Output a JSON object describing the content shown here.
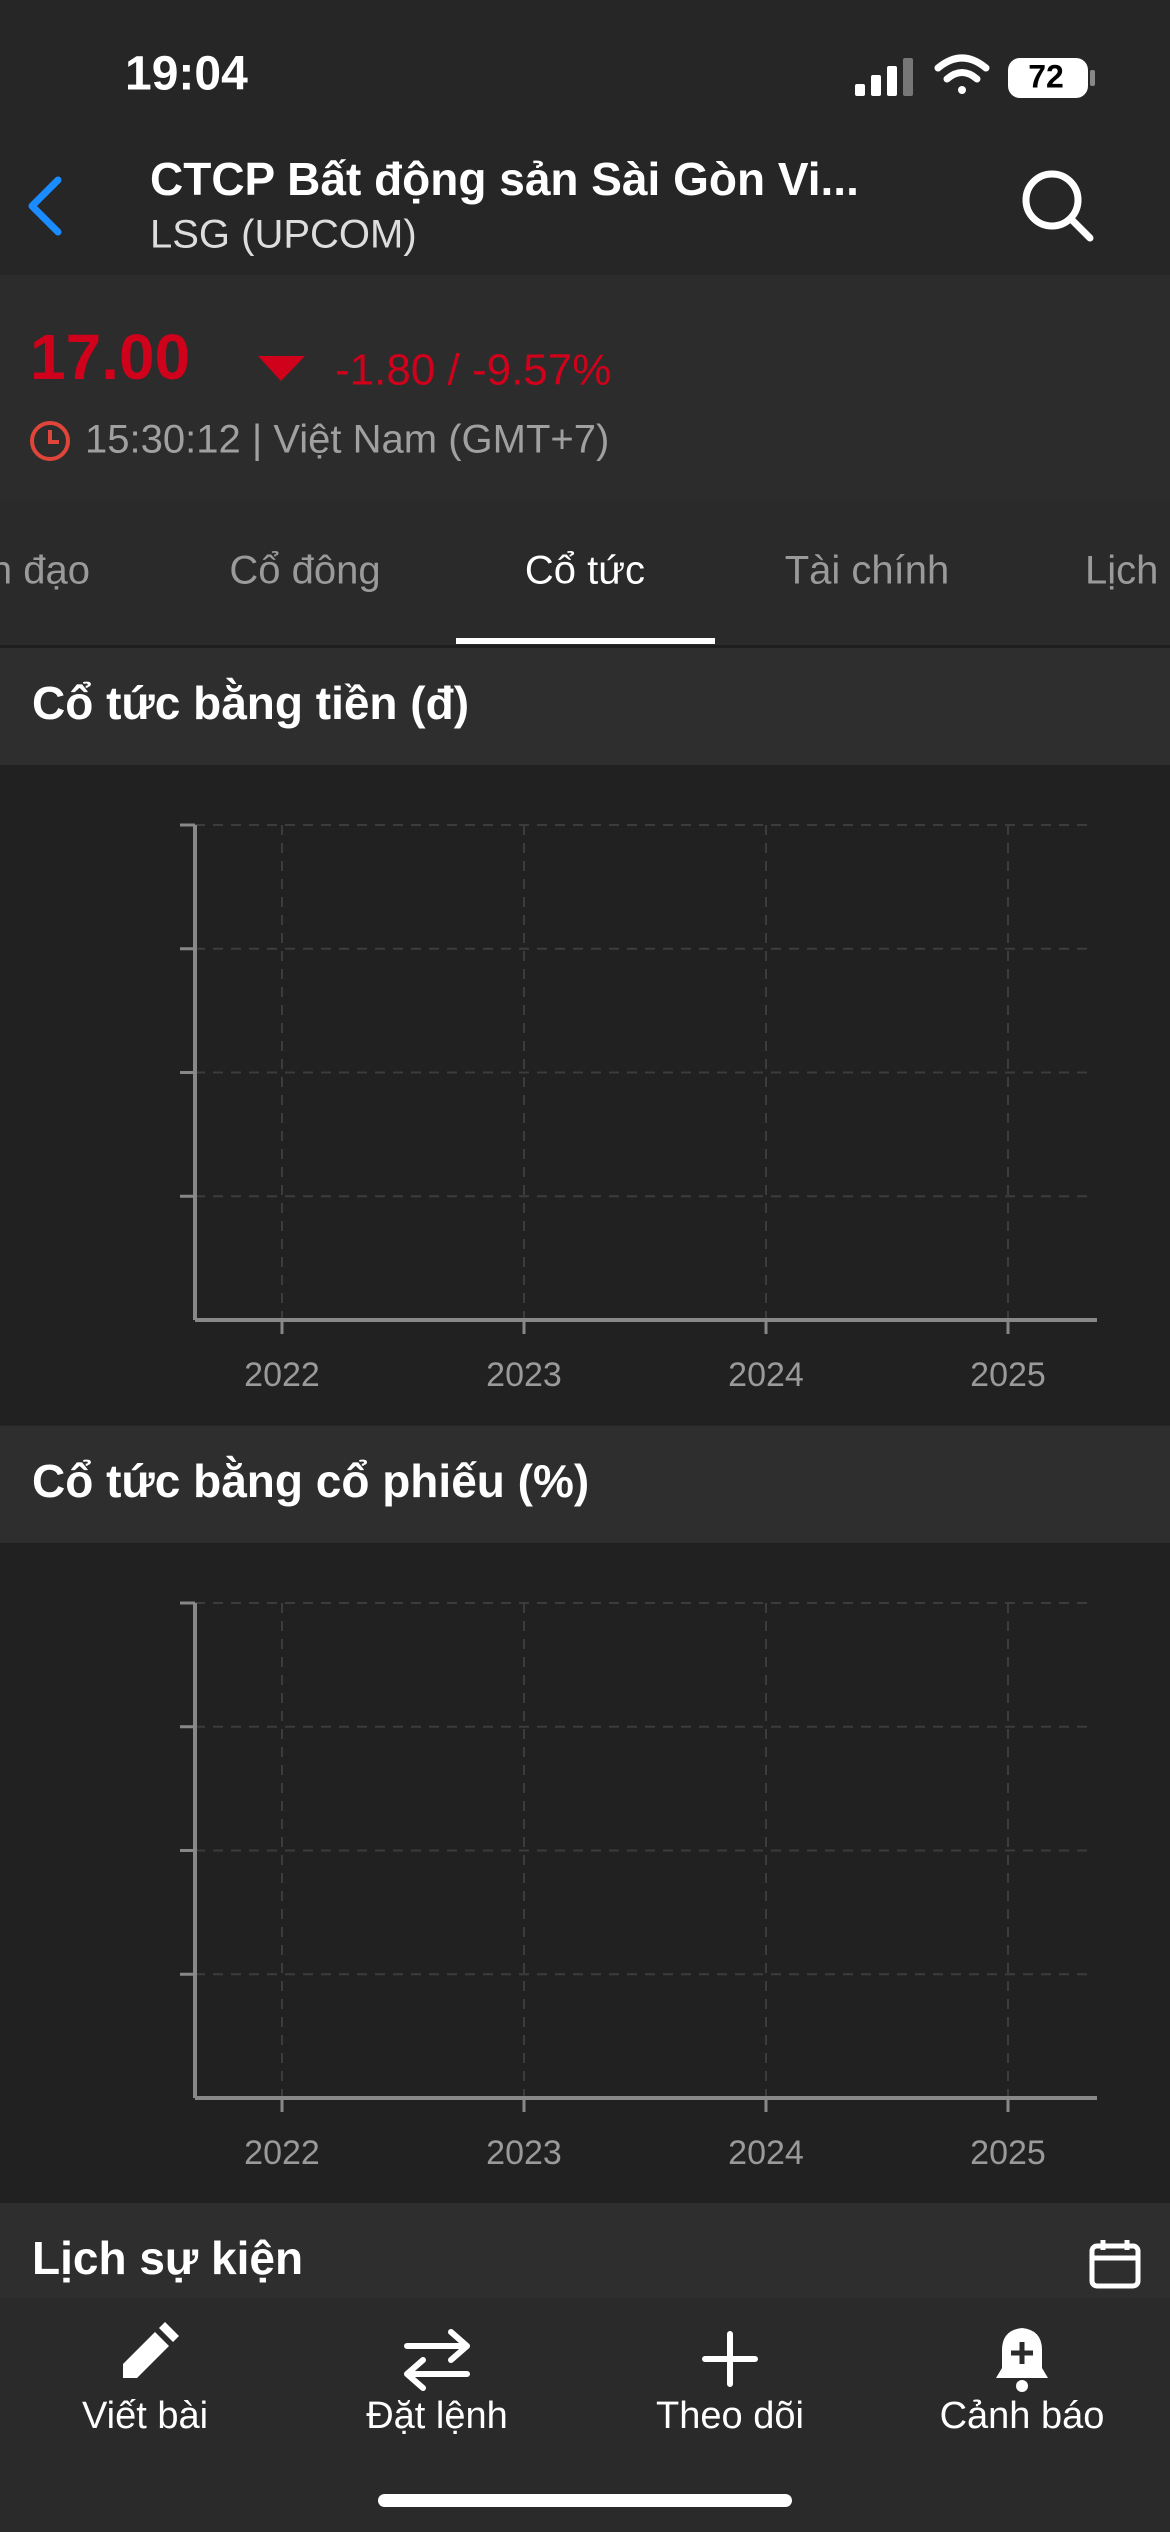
{
  "status_bar": {
    "time": "19:04",
    "battery": "72"
  },
  "header": {
    "title": "CTCP Bất động sản Sài Gòn Vi...",
    "subtitle": "LSG (UPCOM)"
  },
  "quote": {
    "price": "17.00",
    "change": "-1.80 / -9.57%",
    "time": "15:30:12 | Việt Nam (GMT+7)"
  },
  "tabs": [
    "Lãnh đạo",
    "Cổ đông",
    "Cổ tức",
    "Tài chính",
    "Lịch"
  ],
  "charts": [
    {
      "title": "Cổ tức bằng tiền (đ)",
      "categories": [
        "2022",
        "2023",
        "2024",
        "2025"
      ]
    },
    {
      "title": "Cổ tức bằng cổ phiếu (%)",
      "categories": [
        "2022",
        "2023",
        "2024",
        "2025"
      ]
    }
  ],
  "events": {
    "title": "Lịch sự kiện"
  },
  "toolbar": [
    "Viết bài",
    "Đặt lệnh",
    "Theo dõi",
    "Cảnh báo"
  ]
}
